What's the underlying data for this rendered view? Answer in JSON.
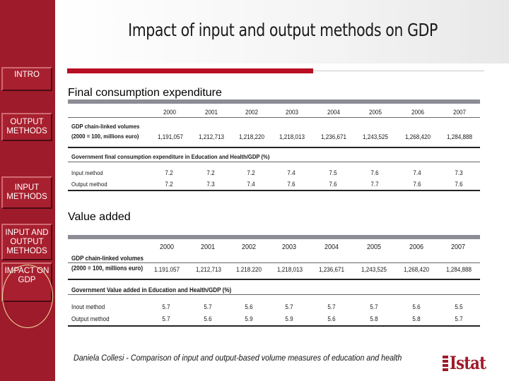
{
  "title": "Impact of input and output methods on GDP",
  "nav": {
    "intro": "INTRO",
    "output_methods": "OUTPUT METHODS",
    "input_methods": "INPUT METHODS",
    "input_and_output": "INPUT AND OUTPUT METHODS",
    "impact": "IMPACT ON GDP"
  },
  "section1": {
    "heading": "Final consumption expenditure",
    "years": [
      "2000",
      "2001",
      "2002",
      "2003",
      "2004",
      "2005",
      "2006",
      "2007"
    ],
    "gdp_label_1": "GDP chain-linked volumes",
    "gdp_label_2": "(2000 = 100, millions euro)",
    "gdp_values": [
      "1,191,057",
      "1,212,713",
      "1,218,220",
      "1,218,013",
      "1,236,671",
      "1,243,525",
      "1,268,420",
      "1,284,888"
    ],
    "share_label": "Government final consumption expenditure in Education and Health/GDP (%)",
    "input_label": "Input method",
    "input_values": [
      "7.2",
      "7.2",
      "7.2",
      "7.4",
      "7.5",
      "7.6",
      "7.4",
      "7.3"
    ],
    "output_label": "Output method",
    "output_values": [
      "7.2",
      "7.3",
      "7.4",
      "7.6",
      "7.6",
      "7.7",
      "7.6",
      "7.6"
    ]
  },
  "section2": {
    "heading": "Value added",
    "years": [
      "2000",
      "2001",
      "2002",
      "2003",
      "2004",
      "2005",
      "2006",
      "2007"
    ],
    "gdp_label_1": "GDP chain-linked volumes",
    "gdp_label_2": "(2000 = 100, millions euro)",
    "gdp_values": [
      "1.191.057",
      "1,212,713",
      "1.218.220",
      "1,218,013",
      "1,236,671",
      "1,243,525",
      "1,268,420",
      "1,284,888"
    ],
    "share_label": "Government Value added in Education and Health/GDP (%)",
    "input_label": "Inout method",
    "input_values": [
      "5.7",
      "5.7",
      "5.6",
      "5.7",
      "5.7",
      "5.7",
      "5.6",
      "5.5"
    ],
    "output_label": "Output method",
    "output_values": [
      "5.7",
      "5.6",
      "5.9",
      "5.9",
      "5.6",
      "5.8",
      "5.8",
      "5.7"
    ]
  },
  "footer": {
    "citation": "Daniela Collesi - Comparison of input and output-based volume measures of education and health",
    "logo": "Istat"
  },
  "colors": {
    "sidebar": "#9e1b2b",
    "accent_bar": "#b80f24",
    "table_header_bar": "#8c8c96"
  }
}
